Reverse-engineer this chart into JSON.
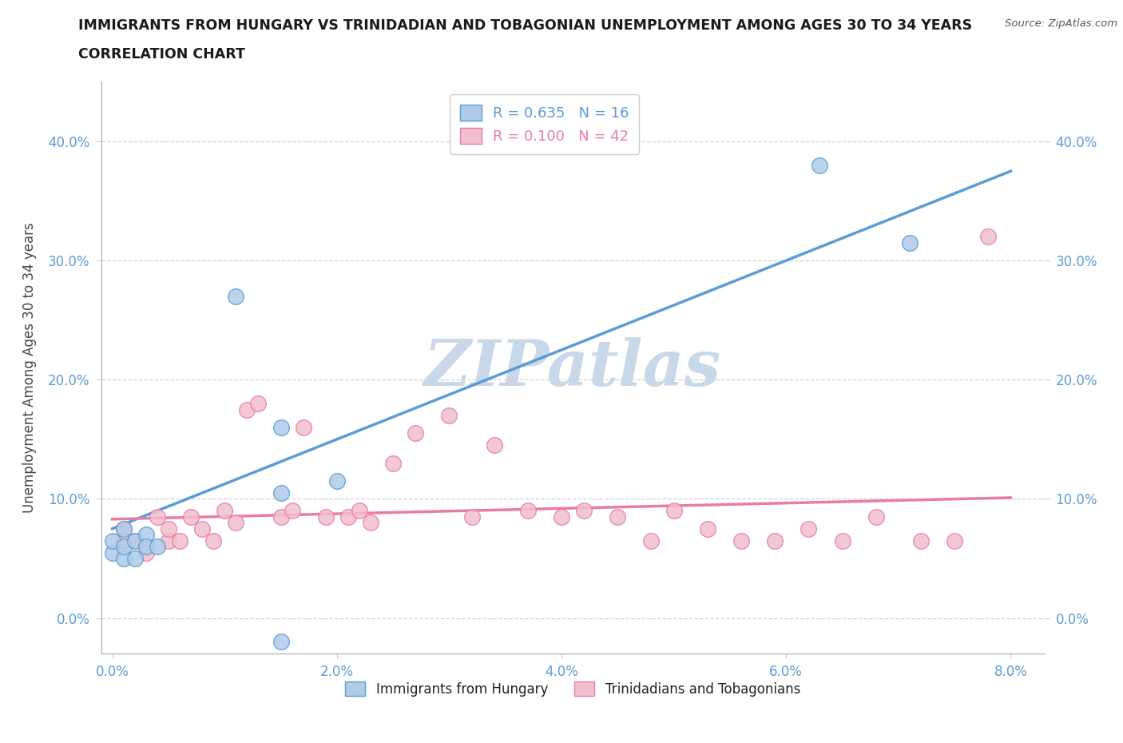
{
  "title_line1": "IMMIGRANTS FROM HUNGARY VS TRINIDADIAN AND TOBAGONIAN UNEMPLOYMENT AMONG AGES 30 TO 34 YEARS",
  "title_line2": "CORRELATION CHART",
  "source": "Source: ZipAtlas.com",
  "ylabel": "Unemployment Among Ages 30 to 34 years",
  "watermark": "ZIPatlas",
  "xlim": [
    -0.001,
    0.083
  ],
  "ylim": [
    -0.03,
    0.45
  ],
  "xticks": [
    0.0,
    0.02,
    0.04,
    0.06,
    0.08
  ],
  "yticks": [
    0.0,
    0.1,
    0.2,
    0.3,
    0.4
  ],
  "ytick_labels": [
    "0.0%",
    "10.0%",
    "20.0%",
    "30.0%",
    "40.0%"
  ],
  "xtick_labels": [
    "0.0%",
    "2.0%",
    "4.0%",
    "6.0%",
    "8.0%"
  ],
  "blue_r": "0.635",
  "blue_n": "16",
  "pink_r": "0.100",
  "pink_n": "42",
  "blue_scatter_x": [
    0.0,
    0.0,
    0.001,
    0.001,
    0.001,
    0.002,
    0.002,
    0.003,
    0.003,
    0.004,
    0.011,
    0.015,
    0.02,
    0.063,
    0.071,
    0.015
  ],
  "blue_scatter_y": [
    0.055,
    0.065,
    0.05,
    0.06,
    0.075,
    0.065,
    0.05,
    0.07,
    0.06,
    0.06,
    0.27,
    0.16,
    0.115,
    0.38,
    0.315,
    0.105
  ],
  "blue_outlier_x": [
    0.015
  ],
  "blue_outlier_y": [
    -0.02
  ],
  "blue_line_x": [
    0.0,
    0.08
  ],
  "blue_line_y": [
    0.075,
    0.375
  ],
  "pink_scatter_x": [
    0.001,
    0.001,
    0.002,
    0.003,
    0.004,
    0.005,
    0.005,
    0.006,
    0.007,
    0.008,
    0.009,
    0.01,
    0.011,
    0.012,
    0.013,
    0.015,
    0.016,
    0.017,
    0.019,
    0.021,
    0.022,
    0.023,
    0.025,
    0.027,
    0.03,
    0.032,
    0.034,
    0.037,
    0.04,
    0.042,
    0.045,
    0.048,
    0.05,
    0.053,
    0.056,
    0.059,
    0.062,
    0.065,
    0.068,
    0.072,
    0.075,
    0.078
  ],
  "pink_scatter_y": [
    0.075,
    0.065,
    0.065,
    0.055,
    0.085,
    0.065,
    0.075,
    0.065,
    0.085,
    0.075,
    0.065,
    0.09,
    0.08,
    0.175,
    0.18,
    0.085,
    0.09,
    0.16,
    0.085,
    0.085,
    0.09,
    0.08,
    0.13,
    0.155,
    0.17,
    0.085,
    0.145,
    0.09,
    0.085,
    0.09,
    0.085,
    0.065,
    0.09,
    0.075,
    0.065,
    0.065,
    0.075,
    0.065,
    0.085,
    0.065,
    0.065,
    0.32
  ],
  "pink_line_x": [
    0.0,
    0.08
  ],
  "pink_line_y": [
    0.083,
    0.101
  ],
  "blue_color": "#5b9bd5",
  "pink_color": "#e87da0",
  "blue_face": "#aecce8",
  "pink_face": "#f2bfce",
  "grid_color": "#d0d0d0",
  "background_color": "#ffffff",
  "watermark_color": "#c8d8e8",
  "tick_color": "#5b9bd5",
  "title_color": "#1a1a1a",
  "source_color": "#555555",
  "ylabel_color": "#444444"
}
